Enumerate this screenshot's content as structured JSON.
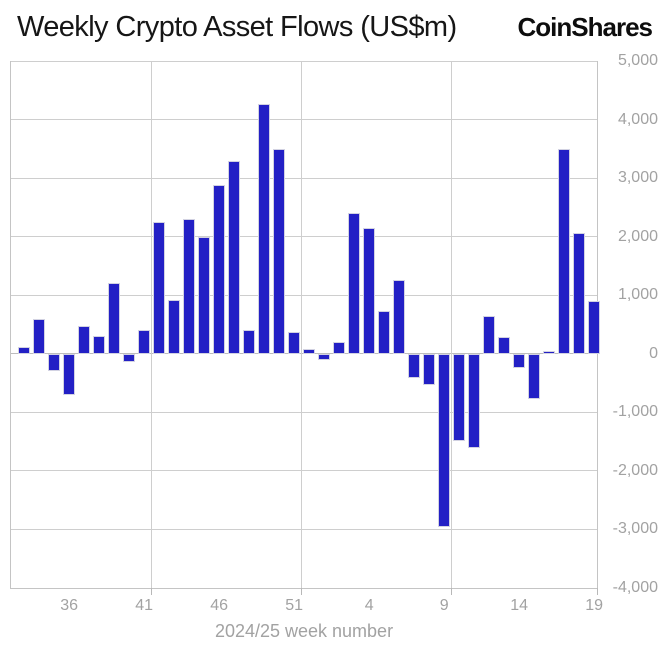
{
  "header": {
    "title": "Weekly Crypto Asset Flows (US$m)",
    "brand": "CoinShares"
  },
  "chart_data": {
    "type": "bar",
    "title": "Weekly Crypto Asset Flows (US$m)",
    "xlabel": "2024/25 week number",
    "ylabel": "",
    "ylim": [
      -4000,
      5000
    ],
    "grid": true,
    "legend": "none",
    "categories": [
      "33",
      "34",
      "35",
      "36",
      "37",
      "38",
      "39",
      "40",
      "41",
      "42",
      "43",
      "44",
      "45",
      "46",
      "47",
      "48",
      "49",
      "50",
      "51",
      "52",
      "1",
      "2",
      "3",
      "4",
      "5",
      "6",
      "7",
      "8",
      "9",
      "10",
      "11",
      "12",
      "13",
      "14",
      "15",
      "16",
      "17",
      "18",
      "19"
    ],
    "values": [
      110,
      600,
      -300,
      -700,
      480,
      300,
      1210,
      -140,
      400,
      2250,
      920,
      2310,
      2000,
      2880,
      3290,
      410,
      4260,
      3500,
      370,
      90,
      -100,
      200,
      2400,
      2140,
      730,
      1260,
      -410,
      -530,
      -2960,
      -1490,
      -1610,
      640,
      280,
      -240,
      -770,
      40,
      3500,
      2060,
      900
    ],
    "x_ticks": [
      {
        "index": 3,
        "label": "36"
      },
      {
        "index": 8,
        "label": "41"
      },
      {
        "index": 13,
        "label": "46"
      },
      {
        "index": 18,
        "label": "51"
      },
      {
        "index": 23,
        "label": "4"
      },
      {
        "index": 28,
        "label": "9"
      },
      {
        "index": 33,
        "label": "14"
      },
      {
        "index": 38,
        "label": "19"
      }
    ],
    "y_ticks": [
      {
        "value": 5000,
        "label": "5,000"
      },
      {
        "value": 4000,
        "label": "4,000"
      },
      {
        "value": 3000,
        "label": "3,000"
      },
      {
        "value": 2000,
        "label": "2,000"
      },
      {
        "value": 1000,
        "label": "1,000"
      },
      {
        "value": 0,
        "label": "0"
      },
      {
        "value": -1000,
        "label": "-1,000"
      },
      {
        "value": -2000,
        "label": "-2,000"
      },
      {
        "value": -3000,
        "label": "-3,000"
      },
      {
        "value": -4000,
        "label": "-4,000"
      }
    ]
  },
  "colors": {
    "bar": "#2320c5",
    "bar_edge": "#d2d2e2",
    "grid": "#cecece",
    "zero_line": "#bdbdbd",
    "axis_border": "#c4c4c4",
    "tick_text": "#a2a2a2",
    "title_text": "#161616"
  }
}
